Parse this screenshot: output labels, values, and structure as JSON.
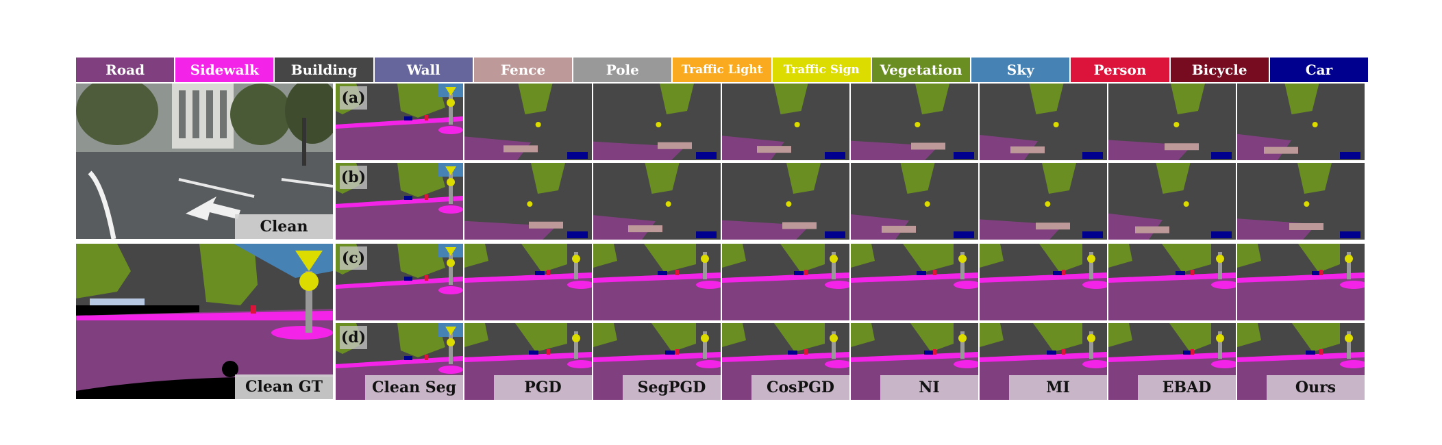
{
  "legend": [
    {
      "label": "Road",
      "color": "#804080"
    },
    {
      "label": "Sidewalk",
      "color": "#f423e8"
    },
    {
      "label": "Building",
      "color": "#464646"
    },
    {
      "label": "Wall",
      "color": "#66669c"
    },
    {
      "label": "Fence",
      "color": "#be9999"
    },
    {
      "label": "Pole",
      "color": "#999999"
    },
    {
      "label": "Traffic Light",
      "color": "#faaa1e"
    },
    {
      "label": "Traffic Sign",
      "color": "#dcdc00"
    },
    {
      "label": "Vegetation",
      "color": "#6b8e23"
    },
    {
      "label": "Sky",
      "color": "#4682b4"
    },
    {
      "label": "Person",
      "color": "#dc143c"
    },
    {
      "label": "Bicycle",
      "color": "#770b20"
    },
    {
      "label": "Car",
      "color": "#00008e"
    }
  ],
  "left": {
    "clean_label": "Clean",
    "gt_label": "Clean GT"
  },
  "rows": [
    "(a)",
    "(b)",
    "(c)",
    "(d)"
  ],
  "columns": [
    "Clean Seg",
    "PGD",
    "SegPGD",
    "CosPGD",
    "NI",
    "MI",
    "EBAD",
    "Ours"
  ]
}
